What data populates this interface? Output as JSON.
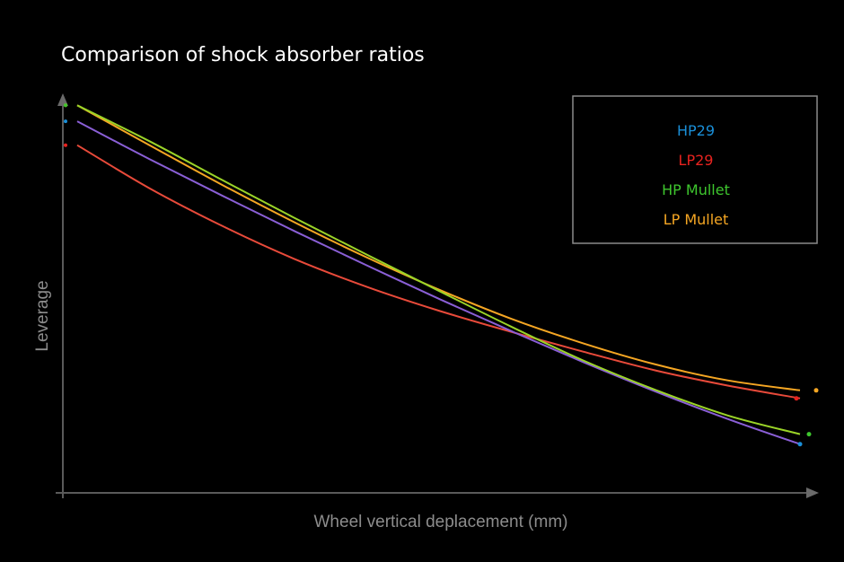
{
  "chart_data": {
    "type": "line",
    "title": "Comparison of shock absorber ratios",
    "xlabel": "Wheel vertical deplacement (mm)",
    "ylabel": "Leverage",
    "xlim": [
      0,
      100
    ],
    "ylim": [
      0,
      100
    ],
    "grid": false,
    "axis_ticks": false,
    "legend_position": "top-right",
    "x": [
      0,
      10,
      20,
      30,
      40,
      50,
      60,
      70,
      80,
      90,
      100
    ],
    "series": [
      {
        "name": "HP29",
        "legend_color": "#1a8fd8",
        "line_color": "#8a5fd6",
        "values": [
          93.0,
          83.5,
          74.4,
          65.5,
          56.9,
          48.5,
          40.4,
          32.6,
          25.2,
          18.3,
          12.0
        ]
      },
      {
        "name": "LP29",
        "legend_color": "#e8231f",
        "line_color": "#e84a3a",
        "values": [
          87.0,
          76.2,
          66.8,
          58.5,
          51.5,
          45.5,
          40.2,
          35.2,
          30.5,
          26.7,
          23.5
        ]
      },
      {
        "name": "HP Mullet",
        "legend_color": "#3ec62e",
        "line_color": "#9bd428",
        "values": [
          97.0,
          88.0,
          78.3,
          68.8,
          59.6,
          50.5,
          41.5,
          33.0,
          25.6,
          19.2,
          14.5
        ]
      },
      {
        "name": "LP Mullet",
        "legend_color": "#f5a623",
        "line_color": "#f5a623",
        "values": [
          97.0,
          87.0,
          77.1,
          67.7,
          58.9,
          50.8,
          43.5,
          37.3,
          32.0,
          28.0,
          25.5
        ]
      }
    ]
  }
}
